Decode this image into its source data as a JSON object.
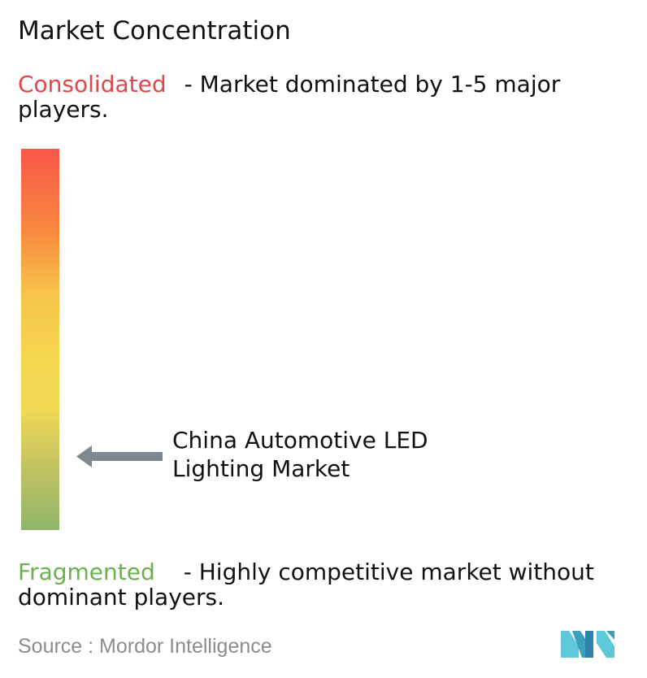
{
  "title": "Market Concentration",
  "consolidated": {
    "label": "Consolidated",
    "text": "- Market dominated by 1-5 major players.",
    "color": "#e0474c"
  },
  "fragmented": {
    "label": "Fragmented",
    "text": "- Highly competitive market without dominant players.",
    "color": "#6ab04c"
  },
  "source": "Source : Mordor Intelligence",
  "chart_data": {
    "type": "gradient-scale",
    "scale_top": "Consolidated",
    "scale_bottom": "Fragmented",
    "gradient_colors": [
      "#f9574a",
      "#f88a3e",
      "#f6c44a",
      "#f5d64e",
      "#f1d954",
      "#c6c461",
      "#8fb56a"
    ],
    "marker": {
      "label": "China Automotive LED Lighting Market",
      "position_from_top": 0.8
    }
  }
}
